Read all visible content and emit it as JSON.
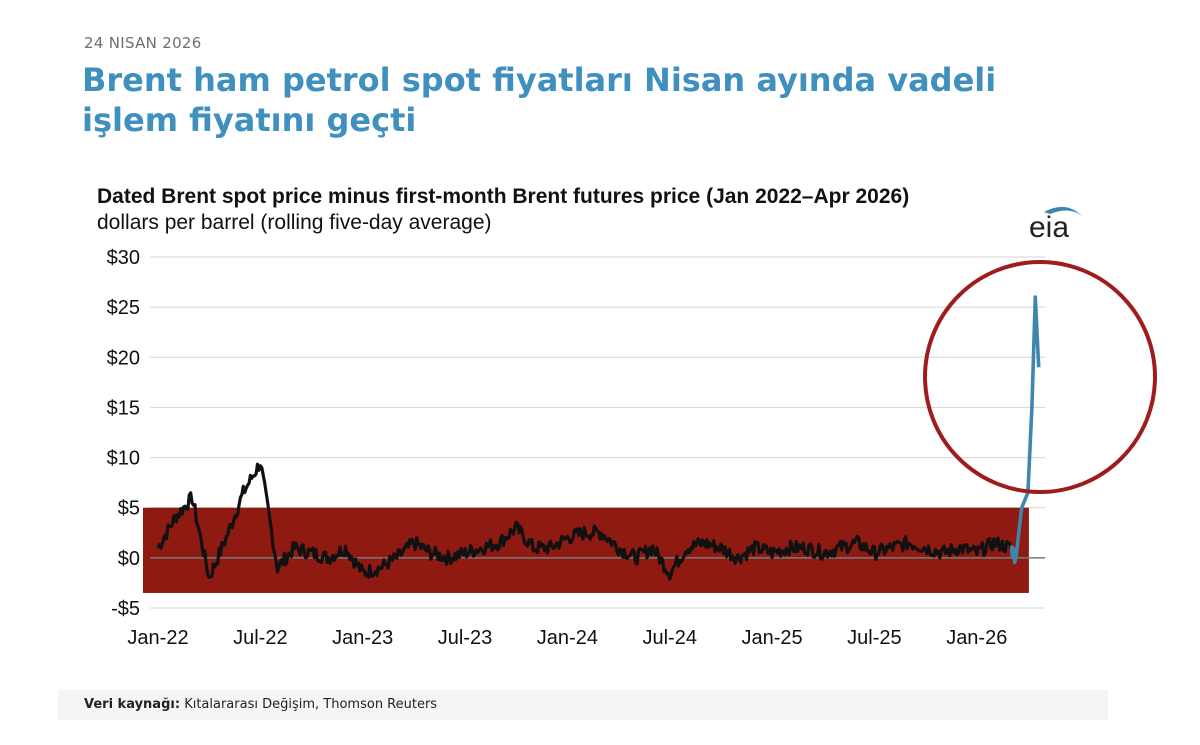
{
  "header": {
    "date": "24 NISAN 2026",
    "headline": "Brent ham petrol spot fiyatları Nisan ayında vadeli işlem fiyatını geçti"
  },
  "logo": {
    "text": "eia"
  },
  "source": {
    "label": "Veri kaynağı:",
    "text": "Kıtalararası Değişim, Thomson Reuters"
  },
  "colors": {
    "headline": "#3f8fbf",
    "series": "#111111",
    "series_highlight": "#3f86ad",
    "band": "#8e1a12",
    "circle": "#a01c1c"
  },
  "chart_data": {
    "type": "line",
    "title": "Dated Brent spot price minus first-month Brent futures price (Jan 2022–Apr 2026)",
    "subtitle": "dollars per barrel (rolling five-day average)",
    "ylim": [
      -5,
      30
    ],
    "yticks": [
      30,
      25,
      20,
      15,
      10,
      5,
      0,
      -5
    ],
    "ytick_labels": [
      "$30",
      "$25",
      "$20",
      "$15",
      "$10",
      "$5",
      "$0",
      "-$5"
    ],
    "xticks": [
      "Jan-22",
      "Jul-22",
      "Jan-23",
      "Jul-23",
      "Jan-24",
      "Jul-24",
      "Jan-25",
      "Jul-25",
      "Jan-26"
    ],
    "xlim": [
      "2022-01",
      "2026-05"
    ],
    "grid": true,
    "highlight_band": {
      "from": "2022-01",
      "to": "2026-03",
      "y_range": [
        -3.5,
        5
      ]
    },
    "annotation": "circle around the April 2026 spike",
    "series": [
      {
        "x": [
          "2022-01",
          "2022-02",
          "2022-03",
          "2022-04",
          "2022-05",
          "2022-06",
          "2022-07",
          "2022-08",
          "2022-09",
          "2022-10",
          "2022-11",
          "2022-12",
          "2023-01",
          "2023-02",
          "2023-03",
          "2023-04",
          "2023-05",
          "2023-06",
          "2023-07",
          "2023-08",
          "2023-09",
          "2023-10",
          "2023-11",
          "2023-12",
          "2024-01",
          "2024-02",
          "2024-03",
          "2024-04",
          "2024-05",
          "2024-06",
          "2024-07",
          "2024-08",
          "2024-09",
          "2024-10",
          "2024-11",
          "2024-12",
          "2025-01",
          "2025-02",
          "2025-03",
          "2025-04",
          "2025-05",
          "2025-06",
          "2025-07",
          "2025-08",
          "2025-09",
          "2025-10",
          "2025-11",
          "2025-12",
          "2026-01",
          "2026-02",
          "2026-03",
          "2026-03-10",
          "2026-03-20",
          "2026-04-01",
          "2026-04-08",
          "2026-04-14",
          "2026-04-20"
        ],
        "y": [
          1.0,
          4.0,
          6.0,
          -2.0,
          2.0,
          6.5,
          9.5,
          -1.0,
          1.0,
          0.5,
          0.0,
          1.0,
          -1.5,
          -1.0,
          0.0,
          1.5,
          0.5,
          0.0,
          0.5,
          1.0,
          1.5,
          3.0,
          1.0,
          1.0,
          2.0,
          2.5,
          2.5,
          1.0,
          0.0,
          1.0,
          -1.5,
          1.0,
          1.5,
          1.0,
          0.0,
          1.0,
          0.5,
          1.0,
          1.0,
          0.5,
          1.0,
          1.5,
          0.5,
          1.0,
          1.5,
          1.0,
          0.5,
          1.0,
          0.5,
          1.5,
          1.0,
          0.0,
          5.0,
          6.5,
          15.0,
          26.0,
          19.0
        ]
      }
    ]
  }
}
